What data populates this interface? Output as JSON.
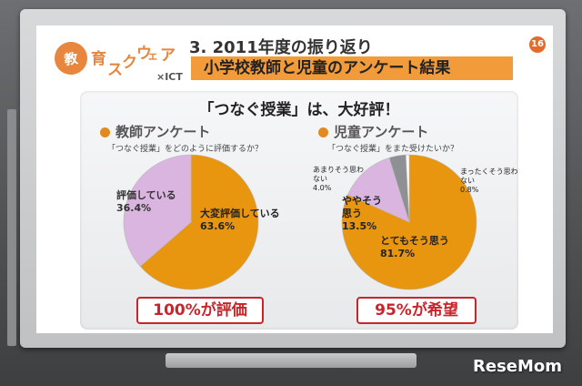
{
  "header": {
    "logo_chars": [
      "教",
      "育",
      "ス",
      "ク",
      "ウ",
      "ェ",
      "ア"
    ],
    "logo_sub": "×ICT",
    "title_line1": "3. 2011年度の振り返り",
    "title_line2": "小学校教師と児童のアンケート結果",
    "page_number": "16"
  },
  "headline": "「つなぐ授業」は、大好評！",
  "colors": {
    "orange": "#e8950f",
    "lavender": "#d9b5e0",
    "gray": "#8f9093",
    "white": "#ffffff",
    "callout_red": "#c8242a"
  },
  "chart_data": [
    {
      "type": "pie",
      "title": "教師アンケート",
      "subtitle": "「つなぐ授業」をどのように評価するか？",
      "slices": [
        {
          "label": "大変評価している",
          "value": 63.6,
          "display": "63.6%",
          "color": "#e8950f"
        },
        {
          "label": "評価している",
          "value": 36.4,
          "display": "36.4%",
          "color": "#d9b5e0"
        }
      ],
      "callout": "100%が評価"
    },
    {
      "type": "pie",
      "title": "児童アンケート",
      "subtitle": "「つなぐ授業」をまた受けたいか？",
      "slices": [
        {
          "label": "とてもそう思う",
          "value": 81.7,
          "display": "81.7%",
          "color": "#e8950f"
        },
        {
          "label": "ややそう思う",
          "value": 13.5,
          "display": "13.5%",
          "color": "#d9b5e0"
        },
        {
          "label": "あまりそう思わない",
          "value": 4.0,
          "display": "4.0%",
          "color": "#8f9093"
        },
        {
          "label": "まったくそう思わない",
          "value": 0.8,
          "display": "0.8%",
          "color": "#ffffff"
        }
      ],
      "callout": "95%が希望"
    }
  ],
  "watermark": "ReseMom"
}
